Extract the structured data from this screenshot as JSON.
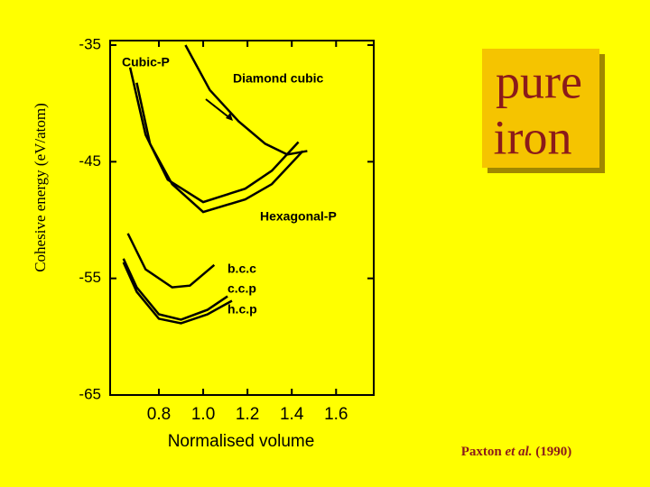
{
  "chart_data": {
    "type": "line",
    "y_label": "Cohesive energy (eV/atom)",
    "x_label": "Normalised volume",
    "xlim": [
      0.58,
      1.77
    ],
    "ylim": [
      -65,
      -35
    ],
    "xticks": [
      0.8,
      {
        "value": 1,
        "label": "1.0"
      },
      1.2,
      1.4,
      1.6
    ],
    "yticks": [
      -35,
      -45,
      -55,
      -65
    ],
    "series": [
      {
        "name": "Cubic-P",
        "color": "#000000",
        "x": [
          0.67,
          0.74,
          0.84,
          1.0,
          1.19,
          1.31,
          1.43
        ],
        "values": [
          -36.92,
          -42.69,
          -46.54,
          -48.46,
          -47.31,
          -45.77,
          -43.31
        ]
      },
      {
        "name": "Diamond cubic",
        "color": "#000000",
        "x": [
          0.92,
          1.03,
          1.16,
          1.28,
          1.38,
          1.47
        ],
        "values": [
          -35,
          -38.85,
          -41.54,
          -43.46,
          -44.38,
          -44.08
        ]
      },
      {
        "name": "Hexagonal-P",
        "color": "#000000",
        "x": [
          0.7,
          0.76,
          0.86,
          1.0,
          1.19,
          1.31,
          1.45
        ],
        "values": [
          -38.23,
          -43.46,
          -46.92,
          -49.31,
          -48.23,
          -46.92,
          -44.08
        ]
      },
      {
        "name": "b.c.c",
        "color": "#000000",
        "x": [
          0.66,
          0.74,
          0.86,
          0.94,
          1.05
        ],
        "values": [
          -51.15,
          -54.23,
          -55.77,
          -55.62,
          -53.85
        ]
      },
      {
        "name": "c.c.p",
        "color": "#000000",
        "x": [
          0.64,
          0.7,
          0.8,
          0.9,
          1.02,
          1.11
        ],
        "values": [
          -53.31,
          -55.77,
          -58.08,
          -58.54,
          -57.69,
          -56.54
        ]
      },
      {
        "name": "h.c.p",
        "color": "#000000",
        "x": [
          0.64,
          0.7,
          0.8,
          0.9,
          1.02,
          1.13
        ],
        "values": [
          -53.62,
          -56.15,
          -58.46,
          -58.85,
          -58.08,
          -56.92
        ]
      }
    ]
  },
  "badge": {
    "line1": "pure",
    "line2": "iron"
  },
  "citation": {
    "author": "Paxton",
    "etal": "et al.",
    "year": "(1990)"
  }
}
